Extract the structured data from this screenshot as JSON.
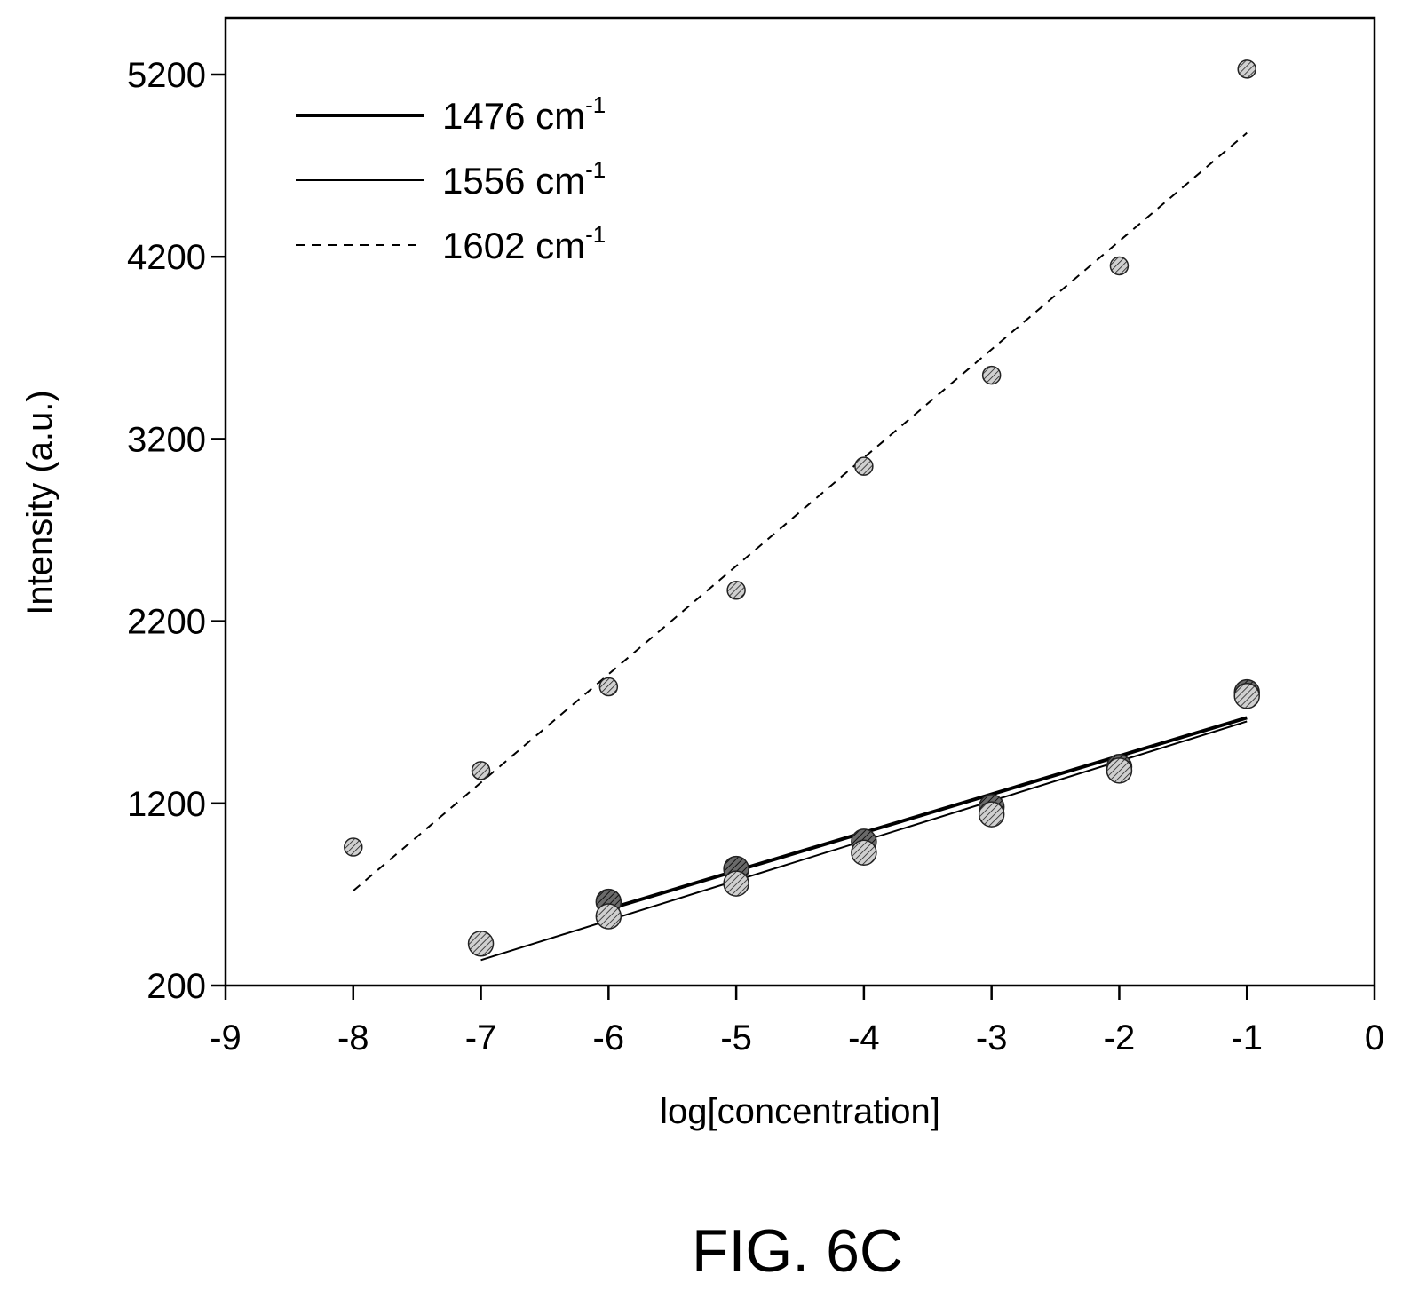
{
  "chart_data": {
    "type": "scatter",
    "xlabel": "log[concentration]",
    "ylabel": "Intensity (a.u.)",
    "xlim": [
      -9,
      0
    ],
    "ylim": [
      200,
      5500
    ],
    "xticks": [
      -9,
      -8,
      -7,
      -6,
      -5,
      -4,
      -3,
      -2,
      -1,
      0
    ],
    "xtick_labels": [
      "-9",
      "-8",
      "-7",
      "-6",
      "-5",
      "-4",
      "-3",
      "-2",
      "-1",
      "0"
    ],
    "yticks": [
      200,
      1200,
      2200,
      3200,
      4200,
      5200
    ],
    "ytick_labels": [
      "200",
      "1200",
      "2200",
      "3200",
      "4200",
      "5200"
    ],
    "grid": false,
    "legend_position": "top-left",
    "series": [
      {
        "name_base": "1476 cm",
        "name_sup": "-1",
        "line_style": "solid-thick",
        "x": [
          -6,
          -5,
          -4,
          -3,
          -2,
          -1
        ],
        "y": [
          660,
          840,
          990,
          1180,
          1400,
          1810
        ],
        "fit": {
          "x": [
            -6,
            -1
          ],
          "y": [
            620,
            1670
          ]
        }
      },
      {
        "name_base": "1556 cm",
        "name_sup": "-1",
        "line_style": "solid-thin",
        "x": [
          -7,
          -6,
          -5,
          -4,
          -3,
          -2,
          -1
        ],
        "y": [
          430,
          580,
          760,
          930,
          1140,
          1380,
          1790
        ],
        "fit": {
          "x": [
            -7,
            -1
          ],
          "y": [
            340,
            1650
          ]
        }
      },
      {
        "name_base": "1602 cm",
        "name_sup": "-1",
        "line_style": "dashed",
        "x": [
          -8,
          -7,
          -6,
          -5,
          -4,
          -3,
          -2,
          -1
        ],
        "y": [
          960,
          1380,
          1840,
          2370,
          3050,
          3550,
          4150,
          5230
        ],
        "fit": {
          "x": [
            -8,
            -1
          ],
          "y": [
            720,
            4880
          ]
        }
      }
    ]
  },
  "caption": "FIG. 6C"
}
